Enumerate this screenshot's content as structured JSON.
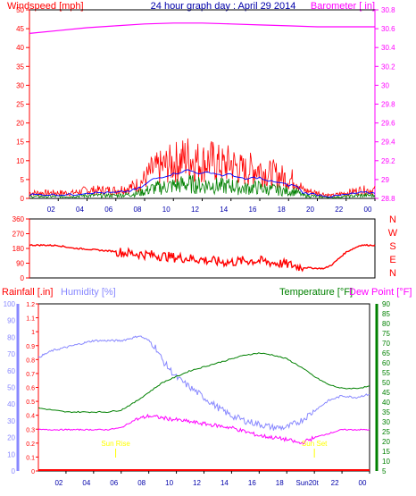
{
  "chart_data": [
    {
      "type": "line",
      "title": "24 hour graph day : April 29 2014",
      "left_axis_label": "Windspeed [mph]",
      "right_axis_label": "Barometer [ in]",
      "x_ticks": [
        "02",
        "04",
        "06",
        "08",
        "10",
        "12",
        "14",
        "16",
        "18",
        "20",
        "22",
        "00"
      ],
      "left_ticks": [
        0,
        5,
        10,
        15,
        20,
        25,
        30,
        35,
        40,
        45,
        50
      ],
      "left_ylim": [
        0,
        50
      ],
      "right_ticks": [
        "28.8",
        "29",
        "29.2",
        "29.4",
        "29.6",
        "29.8",
        "30",
        "30.2",
        "30.4",
        "30.6",
        "30.8"
      ],
      "right_ylim": [
        28.8,
        30.8
      ],
      "series": [
        {
          "name": "Windspeed",
          "color": "#ff0000",
          "x": [
            0,
            1,
            2,
            3,
            4,
            5,
            6,
            7,
            7.5,
            8,
            8.5,
            9,
            9.5,
            10,
            10.5,
            11,
            11.5,
            12,
            12.5,
            13,
            13.5,
            14,
            14.5,
            15,
            15.5,
            16,
            16.5,
            17,
            17.5,
            18,
            18.5,
            19,
            20,
            21,
            22,
            23,
            24
          ],
          "y": [
            2,
            2,
            2,
            2,
            3,
            3,
            3,
            4,
            5,
            7,
            10,
            11,
            12,
            13,
            14,
            15,
            14,
            13,
            14,
            13,
            12,
            13,
            11,
            10,
            11,
            11,
            9,
            9,
            8,
            7,
            7,
            3,
            2,
            1,
            2,
            3,
            3
          ]
        },
        {
          "name": "Barometer",
          "color": "#ff00ff",
          "x": [
            0,
            2,
            4,
            6,
            8,
            10,
            12,
            14,
            16,
            18,
            20,
            22,
            24
          ],
          "y": [
            30.55,
            30.58,
            30.61,
            30.63,
            30.65,
            30.66,
            30.66,
            30.65,
            30.64,
            30.63,
            30.62,
            30.62,
            30.62
          ]
        }
      ]
    },
    {
      "type": "scatter",
      "title": "",
      "left_ticks": [
        0,
        90,
        180,
        270,
        360
      ],
      "right_labels": [
        "N",
        "W",
        "S",
        "E",
        "N"
      ],
      "ylim": [
        0,
        360
      ],
      "series": [
        {
          "name": "Wind direction",
          "color": "#ff0000",
          "x": [
            0,
            1,
            2,
            3,
            4,
            5,
            6,
            7,
            8,
            9,
            10,
            11,
            12,
            13,
            14,
            15,
            16,
            17,
            18,
            19,
            20,
            20.5,
            21,
            22,
            23,
            24
          ],
          "y": [
            200,
            200,
            198,
            182,
            176,
            168,
            162,
            150,
            144,
            136,
            126,
            120,
            112,
            100,
            96,
            106,
            104,
            92,
            82,
            64,
            58,
            58,
            80,
            158,
            200,
            200
          ]
        }
      ]
    },
    {
      "type": "line",
      "title": "",
      "left_axis_label": "Rainfall [.in]",
      "left_axis_label_2": "Humidity [%]",
      "right_axis_label": "Temperature [°F]",
      "right_axis_label_2": "Dew Point [°F]",
      "x_ticks": [
        "02",
        "04",
        "06",
        "08",
        "10",
        "12",
        "14",
        "16",
        "18",
        "Sun20t",
        "22",
        "00"
      ],
      "sunrise_label": "Sun Rise",
      "sunset_label": "Sun Set",
      "sunrise_hour": 5.6,
      "sunset_hour": 20.0,
      "humidity_ticks": [
        0,
        10,
        20,
        30,
        40,
        50,
        60,
        70,
        80,
        90,
        100
      ],
      "humidity_ylim": [
        0,
        100
      ],
      "rain_ticks": [
        "0",
        "0.1",
        "0.2",
        "0.3",
        "0.4",
        "0.5",
        "0.6",
        "0.7",
        "0.8",
        "0.9",
        "1",
        "1.1",
        "1.2"
      ],
      "rain_ylim": [
        0,
        1.2
      ],
      "temp_ticks": [
        5,
        10,
        15,
        20,
        25,
        30,
        35,
        40,
        45,
        50,
        55,
        60,
        65,
        70,
        75,
        80,
        85,
        90
      ],
      "temp_ylim": [
        5,
        90
      ],
      "series": [
        {
          "name": "Humidity",
          "color": "#8888ff",
          "x": [
            0,
            0.5,
            1,
            2,
            3,
            4,
            5,
            6,
            7,
            7.3,
            8,
            8.5,
            9,
            10,
            11,
            12,
            13,
            14,
            15,
            16,
            17,
            18,
            18.5,
            19,
            20,
            21,
            22,
            23,
            24
          ],
          "y": [
            68,
            70,
            72,
            74,
            76,
            78,
            78,
            78,
            80,
            81,
            78,
            74,
            66,
            56,
            50,
            44,
            38,
            33,
            30,
            28,
            26,
            26,
            28,
            30,
            36,
            42,
            45,
            44,
            46
          ]
        },
        {
          "name": "Temperature",
          "color": "#008000",
          "x": [
            0,
            1,
            2,
            3,
            4,
            5,
            6,
            7,
            8,
            9,
            10,
            11,
            12,
            13,
            14,
            15,
            16,
            17,
            18,
            19,
            20,
            21,
            22,
            23,
            24
          ],
          "y": [
            37,
            36,
            35,
            35,
            35,
            35,
            36,
            40,
            45,
            50,
            53,
            56,
            58,
            60,
            62,
            64,
            65,
            64,
            62,
            58,
            53,
            49,
            47,
            47,
            48
          ]
        },
        {
          "name": "Dew Point",
          "color": "#ff00ff",
          "x": [
            0,
            1,
            2,
            3,
            4,
            5,
            6,
            7,
            8,
            9,
            10,
            11,
            12,
            13,
            14,
            15,
            16,
            17,
            18,
            19,
            20,
            21,
            22,
            23,
            24
          ],
          "y": [
            26,
            26,
            26,
            26,
            26,
            26,
            27,
            31,
            33,
            32,
            31,
            30,
            29,
            28,
            27,
            25,
            23,
            22,
            21,
            19,
            22,
            24,
            26,
            26,
            26
          ]
        },
        {
          "name": "Rainfall",
          "color": "#ff0000",
          "x": [
            0,
            24
          ],
          "y": [
            0,
            0
          ]
        }
      ]
    }
  ]
}
